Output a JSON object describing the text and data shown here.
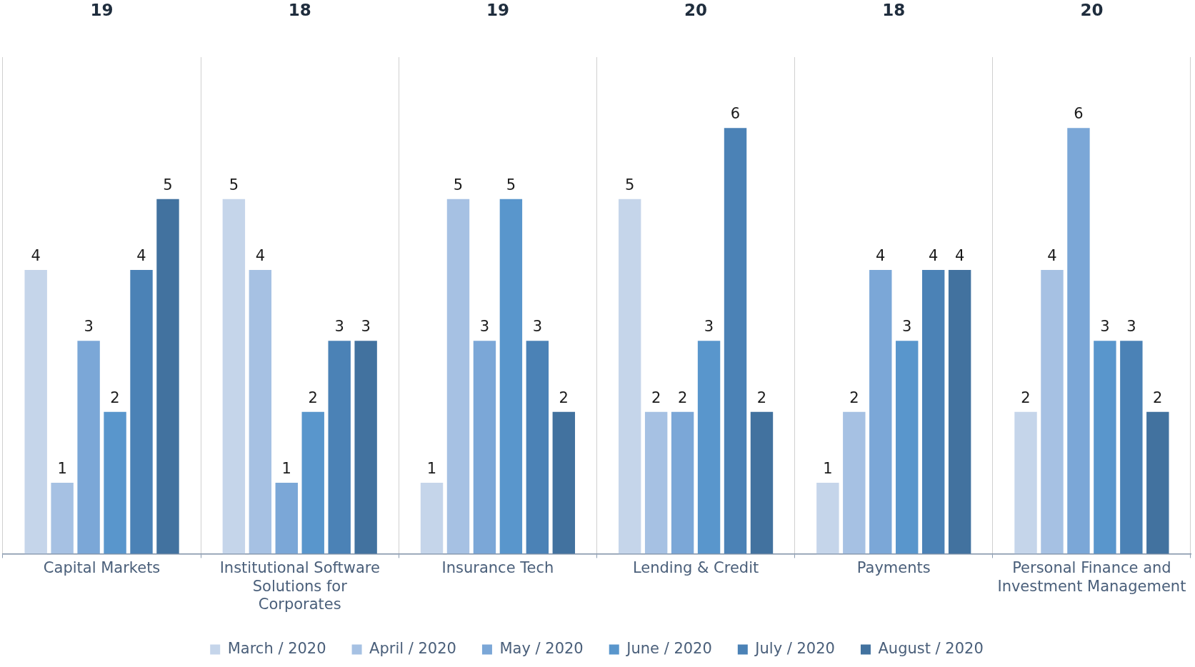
{
  "chart_data": {
    "type": "bar",
    "categories": [
      "Capital Markets",
      "Institutional Software Solutions for Corporates",
      "Insurance Tech",
      "Lending & Credit",
      "Payments",
      "Personal Finance and Investment Management"
    ],
    "series": [
      {
        "name": "March / 2020",
        "color": "#c5d5ea",
        "values": [
          4,
          5,
          1,
          5,
          1,
          2
        ]
      },
      {
        "name": "April / 2020",
        "color": "#a6c1e3",
        "values": [
          1,
          4,
          5,
          2,
          2,
          4
        ]
      },
      {
        "name": "May / 2020",
        "color": "#7ba7d7",
        "values": [
          3,
          1,
          3,
          2,
          4,
          6
        ]
      },
      {
        "name": "June / 2020",
        "color": "#5996cc",
        "values": [
          2,
          2,
          5,
          3,
          3,
          3
        ]
      },
      {
        "name": "July / 2020",
        "color": "#4b82b6",
        "values": [
          4,
          3,
          3,
          6,
          4,
          3
        ]
      },
      {
        "name": "August / 2020",
        "color": "#42729f",
        "values": [
          5,
          3,
          2,
          2,
          4,
          2
        ]
      }
    ],
    "ylim": [
      0,
      7
    ],
    "tick_labels": "x",
    "data_labels": true,
    "annotations": [
      "19",
      "18",
      "19",
      "20",
      "18",
      "20"
    ],
    "grid": "x",
    "legend": "bottom"
  }
}
